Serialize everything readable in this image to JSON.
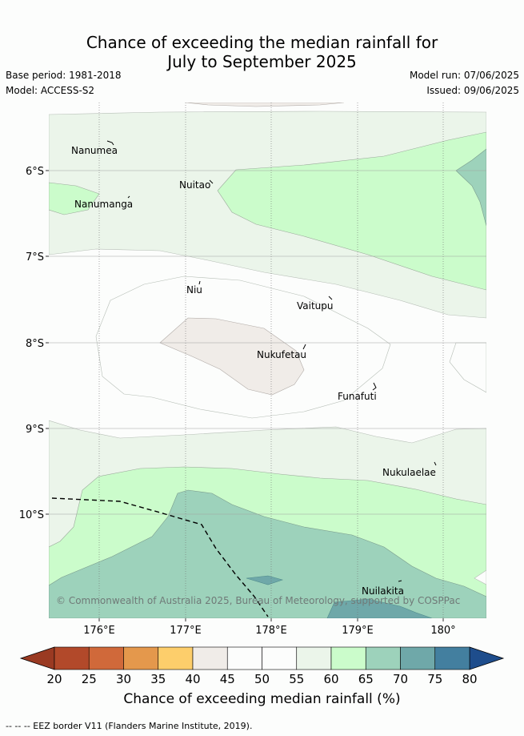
{
  "header": {
    "title_line1": "Chance of exceeding the median rainfall for",
    "title_line2": "July to September 2025",
    "base_period": "Base period: 1981-2018",
    "model": "Model: ACCESS-S2",
    "model_run": "Model run: 07/06/2025",
    "issued": "Issued: 09/06/2025"
  },
  "map": {
    "x_ticks": [
      "176°E",
      "177°E",
      "178°E",
      "179°E",
      "180°"
    ],
    "y_ticks": [
      "6°S",
      "7°S",
      "8°S",
      "9°S",
      "10°S"
    ],
    "places": [
      "Nanumea",
      "Nuitao",
      "Nanumanga",
      "Niu",
      "Vaitupu",
      "Nukufetau",
      "Funafuti",
      "Nukulaelae",
      "Nuilakita"
    ],
    "copyright": "© Commonwealth of Australia 2025, Bureau of Meteorology, supported by COSPPac",
    "legend_line": "EEZ border"
  },
  "colorbar": {
    "labels": [
      "20",
      "25",
      "30",
      "35",
      "40",
      "45",
      "50",
      "55",
      "60",
      "65",
      "70",
      "75",
      "80"
    ],
    "colors": [
      "#b2492a",
      "#d0693a",
      "#e4984c",
      "#fdce6b",
      "#f0ece8",
      "#fcfdfc",
      "#fcfdfc",
      "#ebf5ea",
      "#cbfccb",
      "#9dd2bb",
      "#6fa8a9",
      "#437f9f"
    ],
    "under_color": "#9a3a22",
    "over_color": "#1e4d8c",
    "title": "Chance of exceeding median rainfall (%)"
  },
  "footer": {
    "text": "--  --  -- EEZ border V11 (Flanders Marine Institute, 2019)."
  }
}
